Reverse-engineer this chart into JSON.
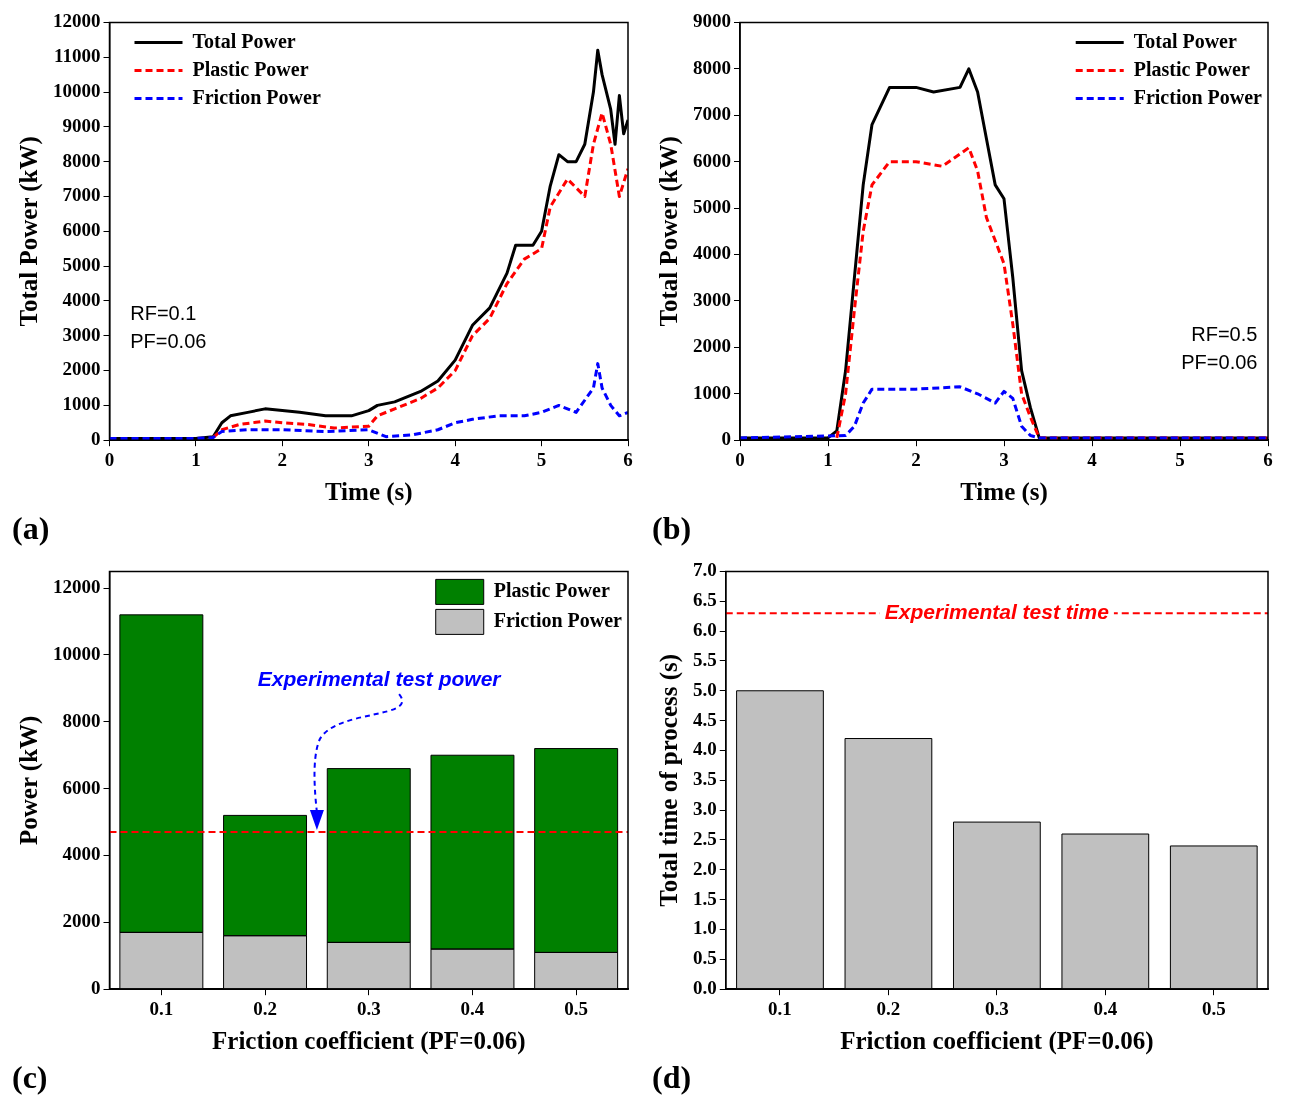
{
  "chart_data": [
    {
      "type": "line",
      "xlabel": "Time (s)",
      "ylabel": "Total Power (kW)",
      "xlim": [
        0,
        6
      ],
      "xticks": [
        0,
        1,
        2,
        3,
        4,
        5,
        6
      ],
      "ylim": [
        0,
        12000
      ],
      "yticks": [
        0,
        1000,
        2000,
        3000,
        4000,
        5000,
        6000,
        7000,
        8000,
        9000,
        10000,
        11000,
        12000
      ],
      "legend": "top left",
      "annotations": [
        "RF=0.1",
        "PF=0.06",
        "(a)"
      ],
      "series": [
        {
          "name": "Total Power",
          "color": "#000000",
          "line_style": "solid",
          "x": [
            0,
            1,
            1.2,
            1.3,
            1.4,
            1.6,
            1.8,
            2,
            2.2,
            2.5,
            2.8,
            3,
            3.1,
            3.3,
            3.6,
            3.8,
            4,
            4.2,
            4.4,
            4.6,
            4.7,
            4.9,
            5,
            5.1,
            5.2,
            5.3,
            5.4,
            5.5,
            5.6,
            5.65,
            5.7,
            5.8,
            5.85,
            5.9,
            5.95,
            6
          ],
          "values": [
            50,
            50,
            100,
            500,
            700,
            800,
            900,
            850,
            800,
            700,
            700,
            850,
            1000,
            1100,
            1400,
            1700,
            2300,
            3300,
            3800,
            4800,
            5600,
            5600,
            6000,
            7300,
            8200,
            8000,
            8000,
            8500,
            10000,
            11200,
            10500,
            9500,
            8500,
            9900,
            8800,
            9200
          ]
        },
        {
          "name": "Plastic Power",
          "color": "#ff0000",
          "line_style": "dashed",
          "x": [
            1.2,
            1.3,
            1.5,
            1.8,
            2,
            2.3,
            2.6,
            3,
            3.1,
            3.3,
            3.6,
            3.8,
            4,
            4.2,
            4.4,
            4.6,
            4.8,
            5,
            5.1,
            5.3,
            5.5,
            5.6,
            5.7,
            5.8,
            5.9,
            6
          ],
          "values": [
            80,
            300,
            450,
            550,
            500,
            450,
            350,
            400,
            700,
            900,
            1200,
            1500,
            2000,
            3000,
            3500,
            4500,
            5200,
            5500,
            6700,
            7500,
            7000,
            8500,
            9400,
            8500,
            7000,
            7800
          ]
        },
        {
          "name": "Friction Power",
          "color": "#0000ff",
          "line_style": "dashed",
          "x": [
            0,
            1,
            1.2,
            1.3,
            1.6,
            2,
            2.5,
            3,
            3.2,
            3.5,
            3.8,
            4,
            4.2,
            4.5,
            4.8,
            5,
            5.2,
            5.4,
            5.6,
            5.65,
            5.7,
            5.8,
            5.9,
            6
          ],
          "values": [
            50,
            50,
            80,
            250,
            300,
            300,
            250,
            300,
            100,
            150,
            300,
            500,
            600,
            700,
            700,
            800,
            1000,
            800,
            1500,
            2200,
            1500,
            1000,
            700,
            800
          ]
        }
      ]
    },
    {
      "type": "line",
      "xlabel": "Time (s)",
      "ylabel": "Total Power (kW)",
      "xlim": [
        0,
        6
      ],
      "xticks": [
        0,
        1,
        2,
        3,
        4,
        5,
        6
      ],
      "ylim": [
        0,
        9000
      ],
      "yticks": [
        0,
        1000,
        2000,
        3000,
        4000,
        5000,
        6000,
        7000,
        8000,
        9000
      ],
      "legend": "top right",
      "annotations": [
        "RF=0.5",
        "PF=0.06",
        "(b)"
      ],
      "series": [
        {
          "name": "Total Power",
          "color": "#000000",
          "line_style": "solid",
          "x": [
            0,
            1,
            1.1,
            1.2,
            1.3,
            1.4,
            1.5,
            1.7,
            2,
            2.2,
            2.5,
            2.6,
            2.7,
            2.8,
            2.9,
            3,
            3.1,
            3.2,
            3.3,
            3.4,
            6
          ],
          "values": [
            50,
            50,
            200,
            1500,
            3500,
            5500,
            6800,
            7600,
            7600,
            7500,
            7600,
            8000,
            7500,
            6500,
            5500,
            5200,
            3500,
            1500,
            700,
            50,
            50
          ]
        },
        {
          "name": "Plastic Power",
          "color": "#ff0000",
          "line_style": "dashed",
          "x": [
            1.1,
            1.2,
            1.3,
            1.4,
            1.5,
            1.7,
            2,
            2.3,
            2.6,
            2.7,
            2.8,
            2.9,
            3,
            3.1,
            3.2,
            3.3,
            3.4,
            6
          ],
          "values": [
            50,
            1000,
            2800,
            4500,
            5500,
            6000,
            6000,
            5900,
            6300,
            5800,
            4800,
            4300,
            3800,
            2500,
            1000,
            500,
            50,
            50
          ]
        },
        {
          "name": "Friction Power",
          "color": "#0000ff",
          "line_style": "dashed",
          "x": [
            0,
            1.2,
            1.3,
            1.4,
            1.5,
            2,
            2.5,
            2.7,
            2.9,
            3,
            3.1,
            3.2,
            3.3,
            3.4,
            6
          ],
          "values": [
            50,
            100,
            300,
            800,
            1100,
            1100,
            1150,
            1000,
            800,
            1050,
            900,
            300,
            100,
            50,
            50
          ]
        }
      ]
    },
    {
      "type": "bar",
      "stacked": true,
      "xlabel": "Friction coefficient (PF=0.06)",
      "ylabel": "Power (kW)",
      "categories": [
        "0.1",
        "0.2",
        "0.3",
        "0.4",
        "0.5"
      ],
      "ylim": [
        0,
        12500
      ],
      "yticks": [
        0,
        2000,
        4000,
        6000,
        8000,
        10000,
        12000
      ],
      "legend": "top right",
      "annotations": [
        "Experimental test power",
        "(c)"
      ],
      "ref_lines": [
        {
          "axis": "y",
          "value": 4700,
          "color": "#ff0000",
          "line_style": "dashed"
        }
      ],
      "series": [
        {
          "name": "Friction Power",
          "color": "#c0c0c0",
          "values": [
            1700,
            1600,
            1400,
            1200,
            1100
          ]
        },
        {
          "name": "Plastic Power",
          "color": "#008000",
          "values": [
            9500,
            3600,
            5200,
            5800,
            6100
          ]
        }
      ]
    },
    {
      "type": "bar",
      "xlabel": "Friction coefficient (PF=0.06)",
      "ylabel": "Total time of process (s)",
      "categories": [
        "0.1",
        "0.2",
        "0.3",
        "0.4",
        "0.5"
      ],
      "ylim": [
        0,
        7
      ],
      "yticks": [
        {
          "value": 0,
          "label": "0.0"
        },
        0.5,
        {
          "value": 1,
          "label": "1.0"
        },
        1.5,
        {
          "value": 2,
          "label": "2.0"
        },
        2.5,
        {
          "value": 3,
          "label": "3.0"
        },
        3.5,
        {
          "value": 4,
          "label": "4.0"
        },
        4.5,
        {
          "value": 5,
          "label": "5.0"
        },
        5.5,
        {
          "value": 6,
          "label": "6.0"
        },
        6.5,
        {
          "value": 7,
          "label": "7.0"
        }
      ],
      "annotations": [
        "(d)"
      ],
      "ref_lines": [
        {
          "axis": "y",
          "value": 6.3,
          "label": "Experimental test time",
          "color": "#ff0000",
          "line_style": "dashed"
        }
      ],
      "series": [
        {
          "color": "#c0c0c0",
          "values": [
            5.0,
            4.2,
            2.8,
            2.6,
            2.4
          ]
        }
      ]
    }
  ]
}
